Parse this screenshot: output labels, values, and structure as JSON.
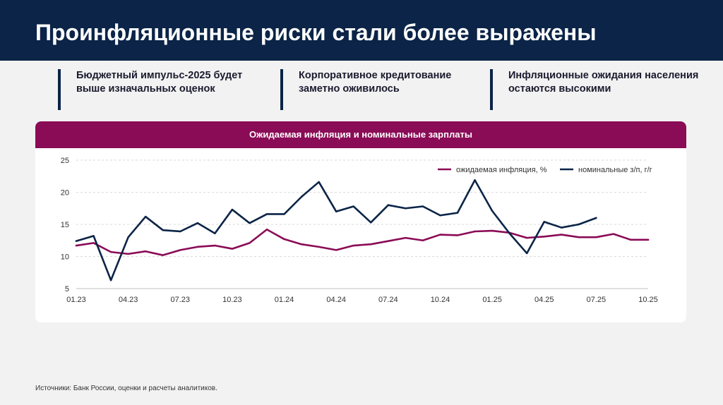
{
  "header": {
    "title": "Проинфляционные риски стали более выражены"
  },
  "key_points": [
    "Бюджетный импульс-2025 будет выше изначальных оценок",
    "Корпоративное кредитование заметно оживилось",
    "Инфляционные ожидания населения остаются высокими"
  ],
  "panel": {
    "title": "Ожидаемая инфляция и номинальные зарплаты"
  },
  "source": "Источники: Банк России, оценки и расчеты аналитиков.",
  "colors": {
    "header_bg": "#0b2447",
    "accent": "#8a0b56",
    "navy": "#0b2447"
  },
  "chart_data": {
    "type": "line",
    "title": "Ожидаемая инфляция и номинальные зарплаты",
    "x_start": "01.23",
    "x_tick_labels": [
      "01.23",
      "04.23",
      "07.23",
      "10.23",
      "01.24",
      "04.24",
      "07.24",
      "10.24",
      "01.25",
      "04.25",
      "07.25",
      "10.25"
    ],
    "x_tick_step_months": 3,
    "ylim": [
      5,
      25
    ],
    "y_ticks": [
      5,
      10,
      15,
      20,
      25
    ],
    "grid": true,
    "legend_position": "top-right",
    "series": [
      {
        "name": "ожидаемая инфляция, %",
        "color": "#8a0b56",
        "values": [
          11.7,
          12.1,
          10.7,
          10.4,
          10.8,
          10.2,
          11.0,
          11.5,
          11.7,
          11.2,
          12.1,
          14.2,
          12.7,
          11.9,
          11.5,
          11.0,
          11.7,
          11.9,
          12.4,
          12.9,
          12.5,
          13.4,
          13.3,
          13.9,
          14.0,
          13.7,
          12.9,
          13.1,
          13.4,
          13.0,
          13.0,
          13.5,
          12.6,
          12.6
        ]
      },
      {
        "name": "номинальные з/п, г/г",
        "color": "#0b2447",
        "values": [
          12.4,
          13.2,
          6.3,
          13.0,
          16.2,
          14.1,
          13.9,
          15.2,
          13.6,
          17.3,
          15.2,
          16.6,
          16.6,
          19.3,
          21.6,
          17.0,
          17.8,
          15.3,
          18.0,
          17.5,
          17.8,
          16.4,
          16.8,
          21.9,
          17.1,
          13.6,
          10.5,
          15.4,
          14.5,
          15.0,
          16.0
        ]
      }
    ]
  }
}
